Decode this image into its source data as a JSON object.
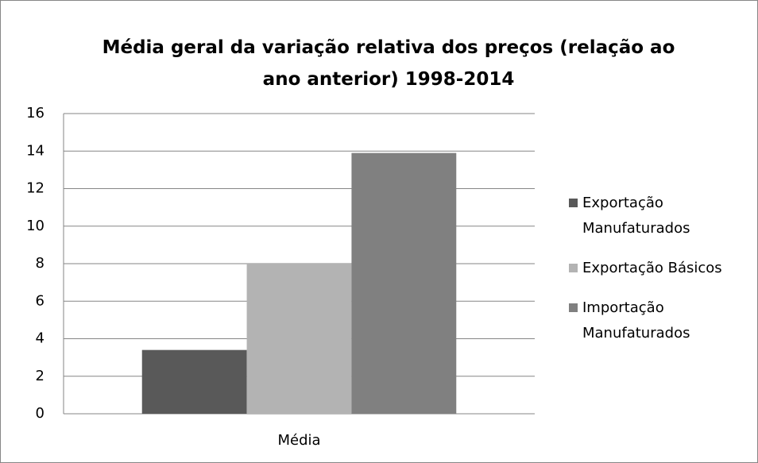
{
  "chart_data": {
    "type": "bar",
    "title": "Média geral da variação relativa dos preços (relação ao ano anterior) 1998-2014",
    "categories": [
      "Média"
    ],
    "series": [
      {
        "name": "Exportação Manufaturados",
        "color": "#595959",
        "values": [
          3.4
        ]
      },
      {
        "name": "Exportação Básicos",
        "color": "#b3b3b3",
        "values": [
          8.0
        ]
      },
      {
        "name": "Importação Manufaturados",
        "color": "#808080",
        "values": [
          13.9
        ]
      }
    ],
    "ylim": [
      0,
      16
    ],
    "yticks": [
      0,
      2,
      4,
      6,
      8,
      10,
      12,
      14,
      16
    ],
    "grid": true,
    "legend": "right"
  }
}
